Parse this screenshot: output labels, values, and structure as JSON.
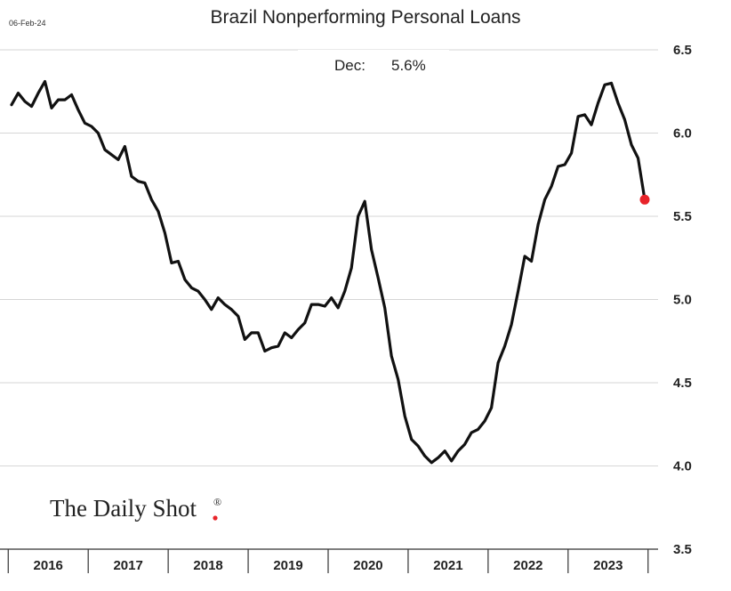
{
  "header": {
    "date": "06-Feb-24",
    "title": "Brazil Nonperforming Personal Loans"
  },
  "annotation": {
    "label": "Dec:",
    "value": "5.6%"
  },
  "logo": {
    "text": "The Daily Shot",
    "mark": "®"
  },
  "colors": {
    "line": "#111111",
    "last_point": "#e8242a",
    "grid": "#d6d6d6",
    "axis": "#333333"
  },
  "chart_data": {
    "type": "line",
    "title": "Brazil Nonperforming Personal Loans",
    "xlabel": "",
    "ylabel": "",
    "y_axis_side": "right",
    "ylim": [
      3.5,
      6.5
    ],
    "yticks": [
      "3.5",
      "4.0",
      "4.5",
      "5.0",
      "5.5",
      "6.0",
      "6.5"
    ],
    "xlim": [
      "2016-01",
      "2023-12"
    ],
    "xticks": [
      "2016",
      "2017",
      "2018",
      "2019",
      "2020",
      "2021",
      "2022",
      "2023"
    ],
    "grid": true,
    "series": [
      {
        "highlight_last": true,
        "points": [
          [
            "2016-01",
            6.17
          ],
          [
            "2016-02",
            6.24
          ],
          [
            "2016-03",
            6.19
          ],
          [
            "2016-04",
            6.16
          ],
          [
            "2016-05",
            6.24
          ],
          [
            "2016-06",
            6.31
          ],
          [
            "2016-07",
            6.15
          ],
          [
            "2016-08",
            6.2
          ],
          [
            "2016-09",
            6.2
          ],
          [
            "2016-10",
            6.23
          ],
          [
            "2016-11",
            6.14
          ],
          [
            "2016-12",
            6.06
          ],
          [
            "2017-01",
            6.04
          ],
          [
            "2017-02",
            6.0
          ],
          [
            "2017-03",
            5.9
          ],
          [
            "2017-04",
            5.87
          ],
          [
            "2017-05",
            5.84
          ],
          [
            "2017-06",
            5.92
          ],
          [
            "2017-07",
            5.74
          ],
          [
            "2017-08",
            5.71
          ],
          [
            "2017-09",
            5.7
          ],
          [
            "2017-10",
            5.6
          ],
          [
            "2017-11",
            5.53
          ],
          [
            "2017-12",
            5.4
          ],
          [
            "2018-01",
            5.22
          ],
          [
            "2018-02",
            5.23
          ],
          [
            "2018-03",
            5.12
          ],
          [
            "2018-04",
            5.07
          ],
          [
            "2018-05",
            5.05
          ],
          [
            "2018-06",
            5.0
          ],
          [
            "2018-07",
            4.94
          ],
          [
            "2018-08",
            5.01
          ],
          [
            "2018-09",
            4.97
          ],
          [
            "2018-10",
            4.94
          ],
          [
            "2018-11",
            4.9
          ],
          [
            "2018-12",
            4.76
          ],
          [
            "2019-01",
            4.8
          ],
          [
            "2019-02",
            4.8
          ],
          [
            "2019-03",
            4.69
          ],
          [
            "2019-04",
            4.71
          ],
          [
            "2019-05",
            4.72
          ],
          [
            "2019-06",
            4.8
          ],
          [
            "2019-07",
            4.77
          ],
          [
            "2019-08",
            4.82
          ],
          [
            "2019-09",
            4.86
          ],
          [
            "2019-10",
            4.97
          ],
          [
            "2019-11",
            4.97
          ],
          [
            "2019-12",
            4.96
          ],
          [
            "2020-01",
            5.01
          ],
          [
            "2020-02",
            4.95
          ],
          [
            "2020-03",
            5.05
          ],
          [
            "2020-04",
            5.19
          ],
          [
            "2020-05",
            5.5
          ],
          [
            "2020-06",
            5.59
          ],
          [
            "2020-07",
            5.3
          ],
          [
            "2020-08",
            5.13
          ],
          [
            "2020-09",
            4.95
          ],
          [
            "2020-10",
            4.66
          ],
          [
            "2020-11",
            4.52
          ],
          [
            "2020-12",
            4.3
          ],
          [
            "2021-01",
            4.16
          ],
          [
            "2021-02",
            4.12
          ],
          [
            "2021-03",
            4.06
          ],
          [
            "2021-04",
            4.02
          ],
          [
            "2021-05",
            4.05
          ],
          [
            "2021-06",
            4.09
          ],
          [
            "2021-07",
            4.03
          ],
          [
            "2021-08",
            4.09
          ],
          [
            "2021-09",
            4.13
          ],
          [
            "2021-10",
            4.2
          ],
          [
            "2021-11",
            4.22
          ],
          [
            "2021-12",
            4.27
          ],
          [
            "2022-01",
            4.35
          ],
          [
            "2022-02",
            4.62
          ],
          [
            "2022-03",
            4.72
          ],
          [
            "2022-04",
            4.85
          ],
          [
            "2022-05",
            5.05
          ],
          [
            "2022-06",
            5.26
          ],
          [
            "2022-07",
            5.23
          ],
          [
            "2022-08",
            5.45
          ],
          [
            "2022-09",
            5.6
          ],
          [
            "2022-10",
            5.68
          ],
          [
            "2022-11",
            5.8
          ],
          [
            "2022-12",
            5.81
          ],
          [
            "2023-01",
            5.88
          ],
          [
            "2023-02",
            6.1
          ],
          [
            "2023-03",
            6.11
          ],
          [
            "2023-04",
            6.05
          ],
          [
            "2023-05",
            6.18
          ],
          [
            "2023-06",
            6.29
          ],
          [
            "2023-07",
            6.3
          ],
          [
            "2023-08",
            6.18
          ],
          [
            "2023-09",
            6.08
          ],
          [
            "2023-10",
            5.93
          ],
          [
            "2023-11",
            5.85
          ],
          [
            "2023-12",
            5.6
          ]
        ]
      }
    ]
  }
}
